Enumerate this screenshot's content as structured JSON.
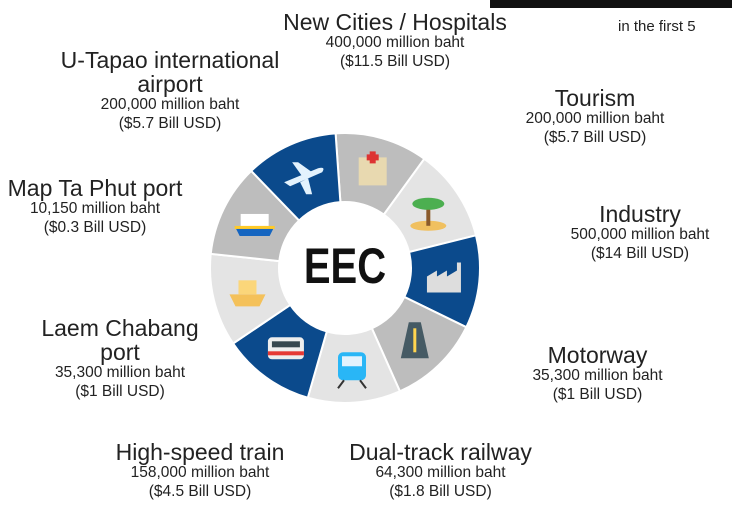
{
  "center": "EEC",
  "note": "in the first 5",
  "segments": [
    {
      "name": "New Cities / Hospitals",
      "amount": "400,000 million baht",
      "usd": "($11.5 Bill USD)",
      "icon": "hospital"
    },
    {
      "name": "Tourism",
      "amount": "200,000 million baht",
      "usd": "($5.7 Bill USD)",
      "icon": "palm"
    },
    {
      "name": "Industry",
      "amount": "500,000 million baht",
      "usd": "($14 Bill USD)",
      "icon": "factory"
    },
    {
      "name": "Motorway",
      "amount": "35,300 million baht",
      "usd": "($1 Bill USD)",
      "icon": "road"
    },
    {
      "name": "Dual-track railway",
      "amount": "64,300 million baht",
      "usd": "($1.8 Bill USD)",
      "icon": "train"
    },
    {
      "name": "High-speed train",
      "amount": "158,000 million baht",
      "usd": "($4.5 Bill USD)",
      "icon": "bullet"
    },
    {
      "name": "Laem Chabang port",
      "amount": "35,300 million baht",
      "usd": "($1 Bill USD)",
      "icon": "ship"
    },
    {
      "name": "Map Ta Phut port",
      "amount": "10,150 million baht",
      "usd": "($0.3 Bill USD)",
      "icon": "cruise"
    },
    {
      "name": "U-Tapao international airport",
      "amount": "200,000 million baht",
      "usd": "($5.7 Bill USD)",
      "icon": "plane"
    }
  ]
}
